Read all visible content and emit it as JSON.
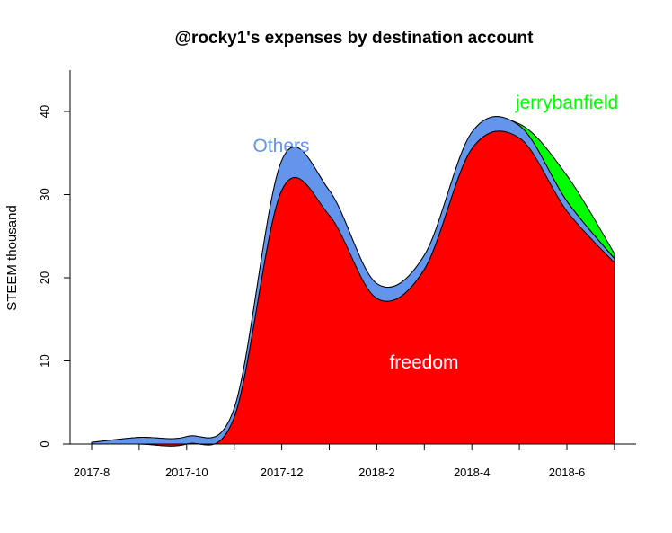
{
  "chart_data": {
    "type": "area",
    "stacked": true,
    "title": "@rocky1's expenses by destination account",
    "xlabel": "",
    "ylabel": "STEEM thousand",
    "x_tick_labels": [
      "2017-8",
      "2017-10",
      "2017-12",
      "2018-2",
      "2018-4",
      "2018-6"
    ],
    "ylim": [
      0,
      45
    ],
    "y_ticks": [
      0,
      10,
      20,
      30,
      40
    ],
    "grid": false,
    "x": [
      "2017-8",
      "2017-9",
      "2017-10",
      "2017-11",
      "2017-12",
      "2018-1",
      "2018-2",
      "2018-3",
      "2018-4",
      "2018-5",
      "2018-6",
      "2018-7"
    ],
    "series": [
      {
        "name": "freedom",
        "color": "#FF0000",
        "values": [
          0,
          0,
          0,
          3.2,
          30.5,
          27.5,
          17.5,
          21.0,
          35.5,
          36.8,
          28.0,
          21.8
        ]
      },
      {
        "name": "Others",
        "color": "#6495ED",
        "values": [
          0.2,
          0.8,
          0.9,
          1.1,
          3.6,
          3.0,
          1.8,
          1.7,
          2.0,
          1.5,
          1.2,
          0.5
        ]
      },
      {
        "name": "jerrybanfield",
        "color": "#00FF00",
        "values": [
          0,
          0,
          0,
          0,
          0,
          0,
          0,
          0,
          0,
          0.2,
          3.1,
          0.6
        ]
      }
    ]
  }
}
